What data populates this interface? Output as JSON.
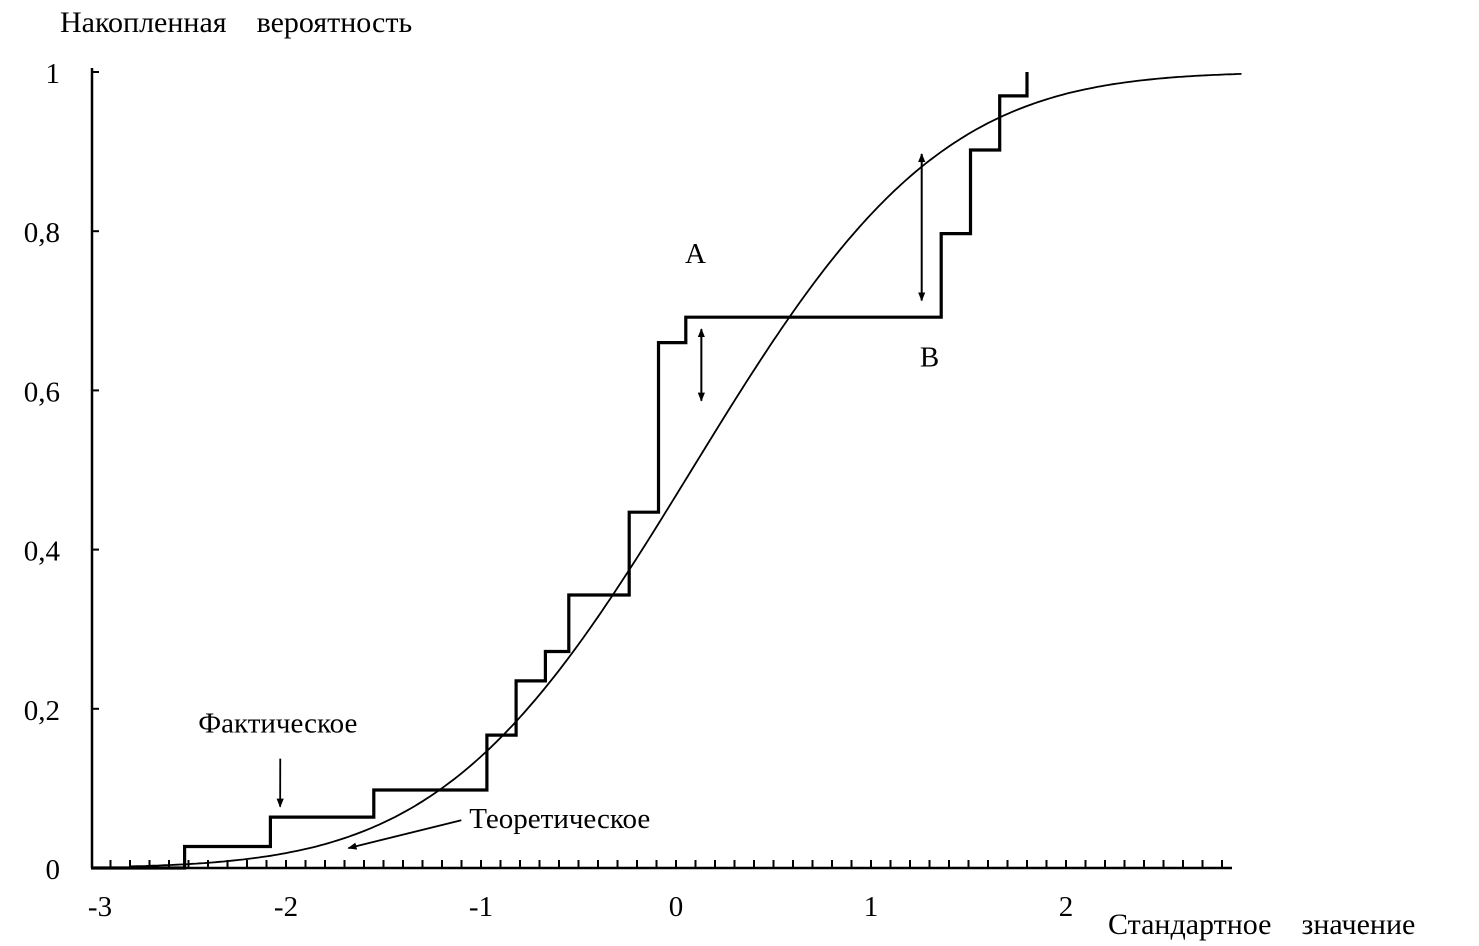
{
  "chart_data": {
    "type": "line",
    "ylabel": "Накопленная    вероятность",
    "xlabel": "Стандартное    значение",
    "xlim": [
      -3,
      2.9
    ],
    "ylim": [
      0,
      1
    ],
    "x_ticks": [
      {
        "value": -3,
        "label": "-3"
      },
      {
        "value": -2,
        "label": "-2"
      },
      {
        "value": -1,
        "label": "-1"
      },
      {
        "value": 0,
        "label": "0"
      },
      {
        "value": 1,
        "label": "1"
      },
      {
        "value": 2,
        "label": "2"
      }
    ],
    "y_ticks": [
      {
        "value": 0,
        "label": "0"
      },
      {
        "value": 0.2,
        "label": "0,2"
      },
      {
        "value": 0.4,
        "label": "0,4"
      },
      {
        "value": 0.6,
        "label": "0,6"
      },
      {
        "value": 0.8,
        "label": "0,8"
      },
      {
        "value": 1,
        "label": "1"
      }
    ],
    "grid": false,
    "series": [
      {
        "name": "Фактическое",
        "kind": "step",
        "points": [
          [
            -3.0,
            0.0
          ],
          [
            -2.52,
            0.0
          ],
          [
            -2.52,
            0.027
          ],
          [
            -2.08,
            0.027
          ],
          [
            -2.08,
            0.064
          ],
          [
            -1.55,
            0.064
          ],
          [
            -1.55,
            0.098
          ],
          [
            -0.97,
            0.098
          ],
          [
            -0.97,
            0.167
          ],
          [
            -0.82,
            0.167
          ],
          [
            -0.82,
            0.235
          ],
          [
            -0.67,
            0.235
          ],
          [
            -0.67,
            0.272
          ],
          [
            -0.55,
            0.272
          ],
          [
            -0.55,
            0.343
          ],
          [
            -0.24,
            0.343
          ],
          [
            -0.24,
            0.447
          ],
          [
            -0.09,
            0.447
          ],
          [
            -0.09,
            0.66
          ],
          [
            0.05,
            0.66
          ],
          [
            0.05,
            0.692
          ],
          [
            1.36,
            0.692
          ],
          [
            1.36,
            0.797
          ],
          [
            1.51,
            0.797
          ],
          [
            1.51,
            0.902
          ],
          [
            1.66,
            0.902
          ],
          [
            1.66,
            0.97
          ],
          [
            1.8,
            0.97
          ],
          [
            1.8,
            1.0
          ]
        ]
      },
      {
        "name": "Теоретическое",
        "kind": "normal_cdf",
        "mean": 0.08,
        "sd": 1.0,
        "x_range": [
          -2.8,
          2.9
        ]
      }
    ],
    "annotations": [
      {
        "text": "A",
        "x": 0.1,
        "y": 0.76
      },
      {
        "text": "B",
        "x": 1.3,
        "y": 0.63
      },
      {
        "text": "Фактическое",
        "x": -2.45,
        "y": 0.17,
        "arrow_to": [
          -2.03,
          0.077
        ]
      },
      {
        "text": "Теоретическое",
        "x": -1.06,
        "y": 0.05,
        "arrow_to": [
          -1.68,
          0.025
        ]
      }
    ],
    "difference_arrows": [
      {
        "x": 0.13,
        "y_from": 0.587,
        "y_to": 0.677
      },
      {
        "x": 1.26,
        "y_from": 0.713,
        "y_to": 0.897
      }
    ]
  }
}
